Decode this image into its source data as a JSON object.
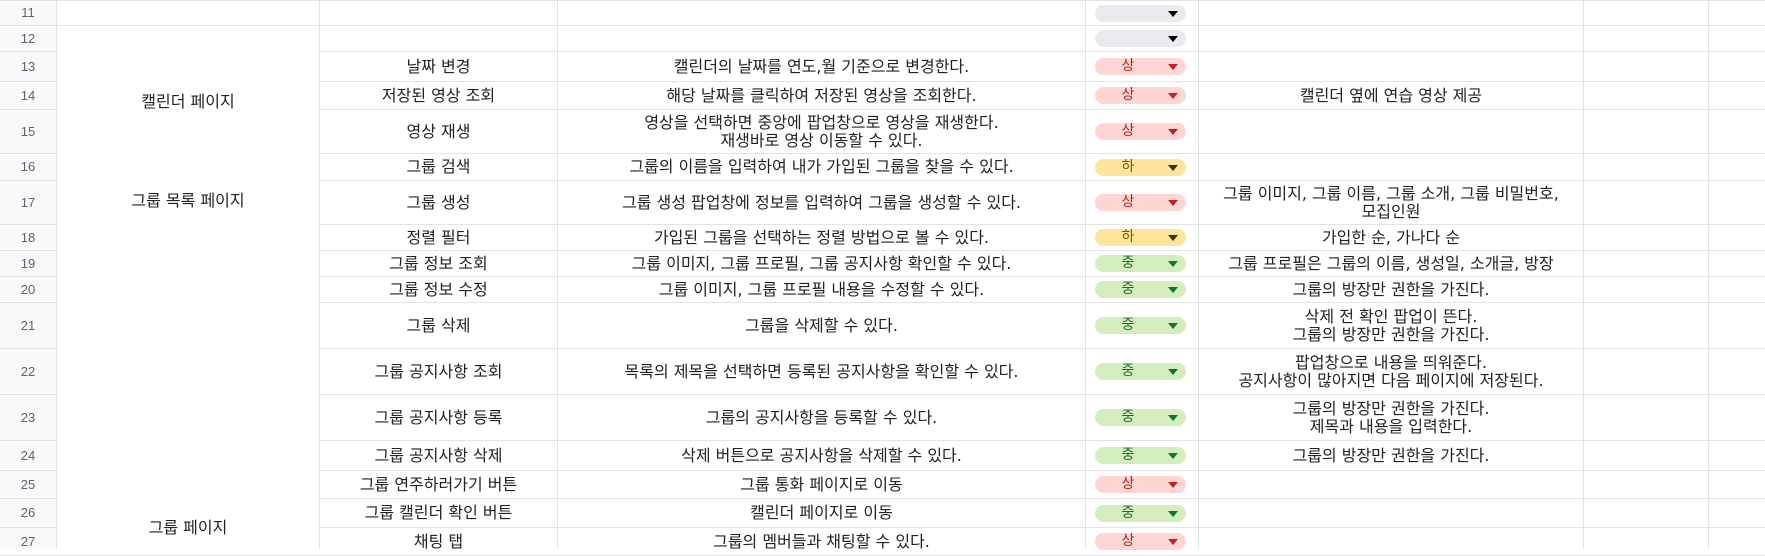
{
  "colors": {
    "high_bg": "#ffd6d4",
    "high_text": "#b3261e",
    "high_arrow": "#c5221f",
    "mid_bg": "#d4edbc",
    "mid_text": "#1e6e37",
    "mid_arrow": "#137333",
    "low_bg": "#ffe49c",
    "low_text": "#7a5a00",
    "low_arrow": "#3c3000",
    "empty_bg": "#e8eaed",
    "empty_arrow": "#000000"
  },
  "icons": {
    "dropdown": "triangle-down-icon"
  },
  "rows": [
    {
      "num": "11",
      "feature": "",
      "desc": [],
      "priority": "",
      "note": []
    },
    {
      "num": "12",
      "feature": "",
      "desc": [],
      "priority": "",
      "note": []
    },
    {
      "num": "13",
      "feature": "날짜 변경",
      "desc": [
        "캘린더의 날짜를 연도,월 기준으로 변경한다."
      ],
      "priority": "상",
      "note": []
    },
    {
      "num": "14",
      "feature": "저장된 영상 조회",
      "desc": [
        "해당 날짜를 클릭하여 저장된 영상을 조회한다."
      ],
      "priority": "상",
      "note": [
        "캘린더 옆에 연습 영상 제공"
      ]
    },
    {
      "num": "15",
      "feature": "영상 재생",
      "desc": [
        "영상을 선택하면 중앙에 팝업창으로 영상을 재생한다.",
        "재생바로 영상 이동할 수 있다."
      ],
      "priority": "상",
      "note": []
    },
    {
      "num": "16",
      "feature": "그룹 검색",
      "desc": [
        "그룹의 이름을 입력하여 내가 가입된 그룹을 찾을 수 있다."
      ],
      "priority": "하",
      "note": []
    },
    {
      "num": "17",
      "feature": "그룹 생성",
      "desc": [
        "그룹 생성 팝업창에 정보를 입력하여 그룹을 생성할 수 있다."
      ],
      "priority": "상",
      "note": [
        "그룹 이미지, 그룹 이름, 그룹 소개, 그룹 비밀번호,",
        "모집인원"
      ]
    },
    {
      "num": "18",
      "feature": "정렬 필터",
      "desc": [
        "가입된 그룹을 선택하는 정렬 방법으로 볼 수 있다."
      ],
      "priority": "하",
      "note": [
        "가입한 순, 가나다 순"
      ]
    },
    {
      "num": "19",
      "feature": "그룹 정보 조회",
      "desc": [
        "그룹 이미지, 그룹 프로필, 그룹 공지사항 확인할 수 있다."
      ],
      "priority": "중",
      "note": [
        "그룹 프로필은 그룹의 이름, 생성일, 소개글, 방장"
      ]
    },
    {
      "num": "20",
      "feature": "그룹 정보 수정",
      "desc": [
        "그룹 이미지, 그룹 프로필 내용을 수정할 수 있다."
      ],
      "priority": "중",
      "note": [
        "그룹의 방장만 권한을 가진다."
      ]
    },
    {
      "num": "21",
      "feature": "그룹 삭제",
      "desc": [
        "그룹을 삭제할 수 있다."
      ],
      "priority": "중",
      "note": [
        "삭제 전 확인 팝업이 뜬다.",
        "그룹의 방장만 권한을 가진다."
      ]
    },
    {
      "num": "22",
      "feature": "그룹 공지사항 조회",
      "desc": [
        "목록의 제목을 선택하면 등록된 공지사항을 확인할 수 있다."
      ],
      "priority": "중",
      "note": [
        "팝업창으로 내용을 띄워준다.",
        "공지사항이 많아지면 다음 페이지에 저장된다."
      ]
    },
    {
      "num": "23",
      "feature": "그룹 공지사항 등록",
      "desc": [
        "그룹의 공지사항을 등록할 수 있다."
      ],
      "priority": "중",
      "note": [
        "그룹의 방장만 권한을 가진다.",
        "제목과 내용을 입력한다."
      ]
    },
    {
      "num": "24",
      "feature": "그룹 공지사항 삭제",
      "desc": [
        "삭제 버튼으로 공지사항을 삭제할 수 있다."
      ],
      "priority": "중",
      "note": [
        "그룹의 방장만 권한을 가진다."
      ]
    },
    {
      "num": "25",
      "feature": "그룹 연주하러가기 버튼",
      "desc": [
        "그룹 통화 페이지로 이동"
      ],
      "priority": "상",
      "note": []
    },
    {
      "num": "26",
      "feature": "그룹 캘린더 확인 버튼",
      "desc": [
        "캘린더 페이지로 이동"
      ],
      "priority": "중",
      "note": []
    },
    {
      "num": "27",
      "feature": "채팅 탭",
      "desc": [
        "그룹의 멤버들과 채팅할 수 있다."
      ],
      "priority": "상",
      "note": []
    }
  ],
  "pages": [
    {
      "label": "캘린더 페이지"
    },
    {
      "label": "그룹 목록 페이지"
    },
    {
      "label": "그룹 페이지"
    }
  ]
}
